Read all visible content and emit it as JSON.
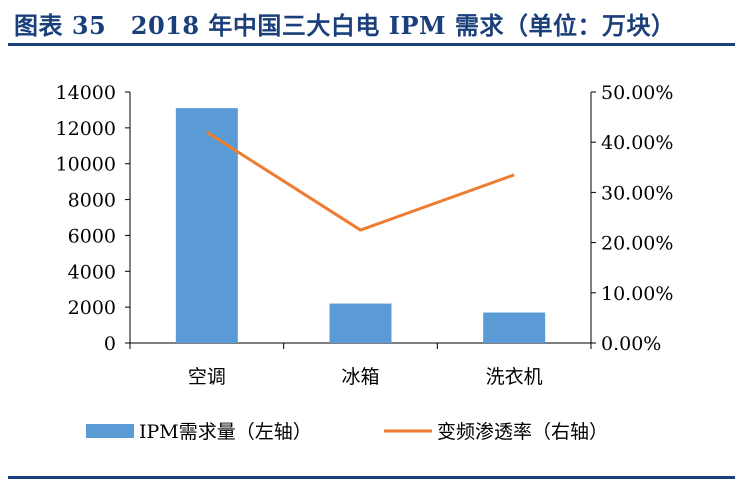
{
  "title": "图表 35　2018 年中国三大白电 IPM 需求（单位：万块）",
  "chart_data": {
    "type": "bar+line",
    "categories": [
      "空调",
      "冰箱",
      "洗衣机"
    ],
    "series": [
      {
        "name": "IPM需求量（左轴）",
        "type": "bar",
        "axis": "left",
        "values": [
          13100,
          2200,
          1700
        ],
        "color": "#5b9bd5"
      },
      {
        "name": "变频渗透率（右轴）",
        "type": "line",
        "axis": "right",
        "values": [
          42.0,
          22.5,
          33.5
        ],
        "color": "#ed7d31"
      }
    ],
    "left_axis": {
      "min": 0,
      "max": 14000,
      "step": 2000,
      "tick_labels": [
        "0",
        "2000",
        "4000",
        "6000",
        "8000",
        "10000",
        "12000",
        "14000"
      ]
    },
    "right_axis": {
      "min": 0,
      "max": 50,
      "step": 10,
      "tick_labels": [
        "0.00%",
        "10.00%",
        "20.00%",
        "30.00%",
        "40.00%",
        "50.00%"
      ]
    },
    "legend_position": "bottom",
    "grid": false
  }
}
